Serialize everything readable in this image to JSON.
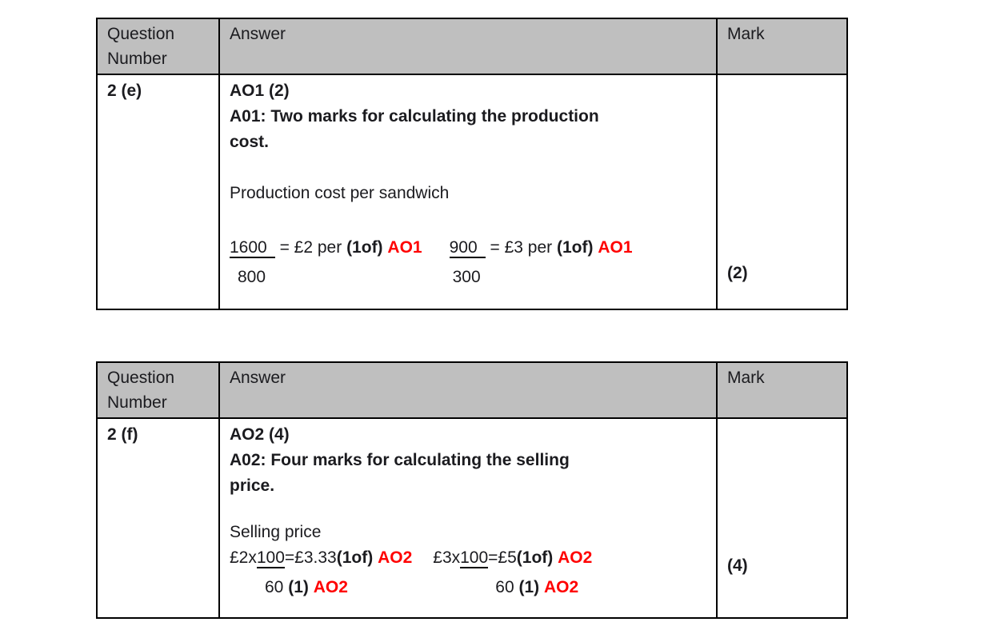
{
  "colors": {
    "header_bg": "#bfbfbf",
    "border": "#000000",
    "text": "#1b1b1f",
    "accent_red": "#ff0000"
  },
  "tables": [
    {
      "header": {
        "question_number": "Question Number",
        "answer": "Answer",
        "mark": "Mark"
      },
      "row": {
        "question_number": "2 (e)",
        "mark": "(2)",
        "answer": {
          "ao_title": "AO1 (2)",
          "ao_note_lines": [
            "A01: Two marks for calculating the production",
            "cost."
          ],
          "intro": "Production cost per sandwich",
          "workings": [
            {
              "numerator": "1600",
              "equals": "= £2 per",
              "of_mark": "(1of)",
              "ao_tag": "AO1",
              "denominator": "800"
            },
            {
              "numerator": "900",
              "equals": "= £3 per",
              "of_mark": "(1of)",
              "ao_tag": "AO1",
              "denominator": "300"
            }
          ]
        }
      }
    },
    {
      "header": {
        "question_number": "Question Number",
        "answer": "Answer",
        "mark": "Mark"
      },
      "row": {
        "question_number": "2 (f)",
        "mark": "(4)",
        "answer": {
          "ao_title": "AO2 (4)",
          "ao_note_lines": [
            "A02: Four marks for calculating the selling",
            "price."
          ],
          "intro": "Selling price",
          "workings": [
            {
              "prefix": "£2x",
              "numerator": "100",
              "result": "=£3.33",
              "of_mark": "(1of)",
              "ao_tag": "AO2",
              "denominator": "60",
              "denominator_mark": "(1)",
              "denominator_ao": "AO2"
            },
            {
              "prefix": "£3x",
              "numerator": "100",
              "result": "=£5",
              "of_mark": "(1of)",
              "ao_tag": "AO2",
              "denominator": "60",
              "denominator_mark": "(1)",
              "denominator_ao": "AO2"
            }
          ]
        }
      }
    }
  ]
}
